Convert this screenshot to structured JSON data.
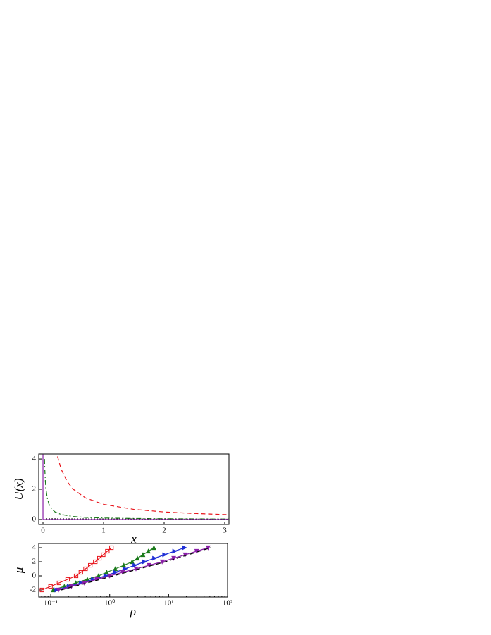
{
  "chart_data": [
    {
      "type": "line",
      "xlabel": "x",
      "ylabel": "U(x)",
      "xlim": [
        -0.07,
        3.07
      ],
      "ylim": [
        -0.33,
        4.33
      ],
      "xticks": [
        0,
        1,
        2,
        3
      ],
      "yticks": [
        0,
        2,
        4
      ],
      "series": [
        {
          "color": "#e8141b",
          "linestyle": "dashed",
          "x": [
            0.24,
            0.3,
            0.4,
            0.5,
            0.7,
            1,
            1.5,
            2,
            2.5,
            3,
            3.07
          ],
          "values": [
            4.17,
            3.33,
            2.5,
            2,
            1.43,
            1,
            0.67,
            0.5,
            0.4,
            0.33,
            0.33
          ]
        },
        {
          "color": "#1a7a1a",
          "linestyle": "dashdot",
          "x": [
            0.025,
            0.03,
            0.04,
            0.05,
            0.07,
            0.1,
            0.15,
            0.2,
            0.3,
            0.5,
            0.7,
            1,
            1.5,
            2,
            2.5,
            3,
            3.07
          ],
          "values": [
            4,
            3.33,
            2.5,
            2,
            1.43,
            1,
            0.67,
            0.5,
            0.33,
            0.2,
            0.14,
            0.1,
            0.07,
            0.05,
            0.04,
            0.03,
            0.03
          ]
        },
        {
          "color": "#000000",
          "linestyle": "dotted",
          "x": [
            0.05,
            3.07
          ],
          "values": [
            0.05,
            0.02
          ]
        },
        {
          "color": "#8a1fa8",
          "linestyle": "solid",
          "x": [
            0,
            0,
            3.07
          ],
          "values": [
            4.3,
            0,
            0
          ]
        }
      ]
    },
    {
      "type": "line",
      "xlabel": "ρ",
      "ylabel": "μ",
      "xscale": "log",
      "xlim": [
        0.0625,
        100
      ],
      "ylim": [
        -3,
        4.6
      ],
      "xticks": [
        {
          "value": 0.1,
          "label": "10⁻¹"
        },
        {
          "value": 1,
          "label": "10⁰"
        },
        {
          "value": 10,
          "label": "10¹"
        },
        {
          "value": 100,
          "label": "10²"
        }
      ],
      "yticks": [
        -2,
        0,
        2,
        4
      ],
      "series": [
        {
          "color": "#e8141b",
          "linestyle": "solid",
          "marker": "square",
          "x": [
            0.071,
            0.099,
            0.138,
            0.193,
            0.269,
            0.324,
            0.389,
            0.468,
            0.569,
            0.668,
            0.776,
            0.912,
            1.07
          ],
          "values": [
            -2,
            -1.5,
            -1,
            -0.5,
            0,
            0.5,
            1,
            1.5,
            2,
            2.5,
            3,
            3.5,
            4
          ]
        },
        {
          "color": "#1a7a1a",
          "linestyle": "solid",
          "marker": "triangle-up",
          "x": [
            0.11,
            0.17,
            0.266,
            0.417,
            0.646,
            0.891,
            1.245,
            1.738,
            2.4,
            2.95,
            3.67,
            4.52,
            5.62
          ],
          "values": [
            -2,
            -1.5,
            -1,
            -0.5,
            0,
            0.5,
            1,
            1.5,
            2,
            2.5,
            3,
            3.5,
            4
          ]
        },
        {
          "color": "#1f2fd6",
          "linestyle": "solid",
          "marker": "triangle-right",
          "x": [
            0.126,
            0.204,
            0.327,
            0.525,
            0.851,
            1.245,
            1.82,
            2.66,
            3.89,
            5.75,
            8.51,
            12.6,
            18.6
          ],
          "values": [
            -2,
            -1.5,
            -1,
            -0.5,
            0,
            0.5,
            1,
            1.5,
            2,
            2.5,
            3,
            3.5,
            4
          ]
        },
        {
          "color": "#8a1fa8",
          "linestyle": "solid",
          "marker": "triangle-down",
          "x": [
            0.135,
            0.224,
            0.367,
            0.603,
            1.0,
            1.66,
            2.79,
            4.68,
            7.76,
            12.2,
            19.1,
            29.9,
            46.8
          ],
          "values": [
            -2,
            -1.5,
            -1,
            -0.5,
            0,
            0.5,
            1,
            1.5,
            2,
            2.5,
            3,
            3.5,
            4
          ]
        },
        {
          "color": "#000000",
          "linestyle": "dashed",
          "x": [
            0.15,
            1.15,
            8.9,
            52
          ],
          "values": [
            -2,
            0,
            2,
            4
          ]
        }
      ]
    }
  ]
}
